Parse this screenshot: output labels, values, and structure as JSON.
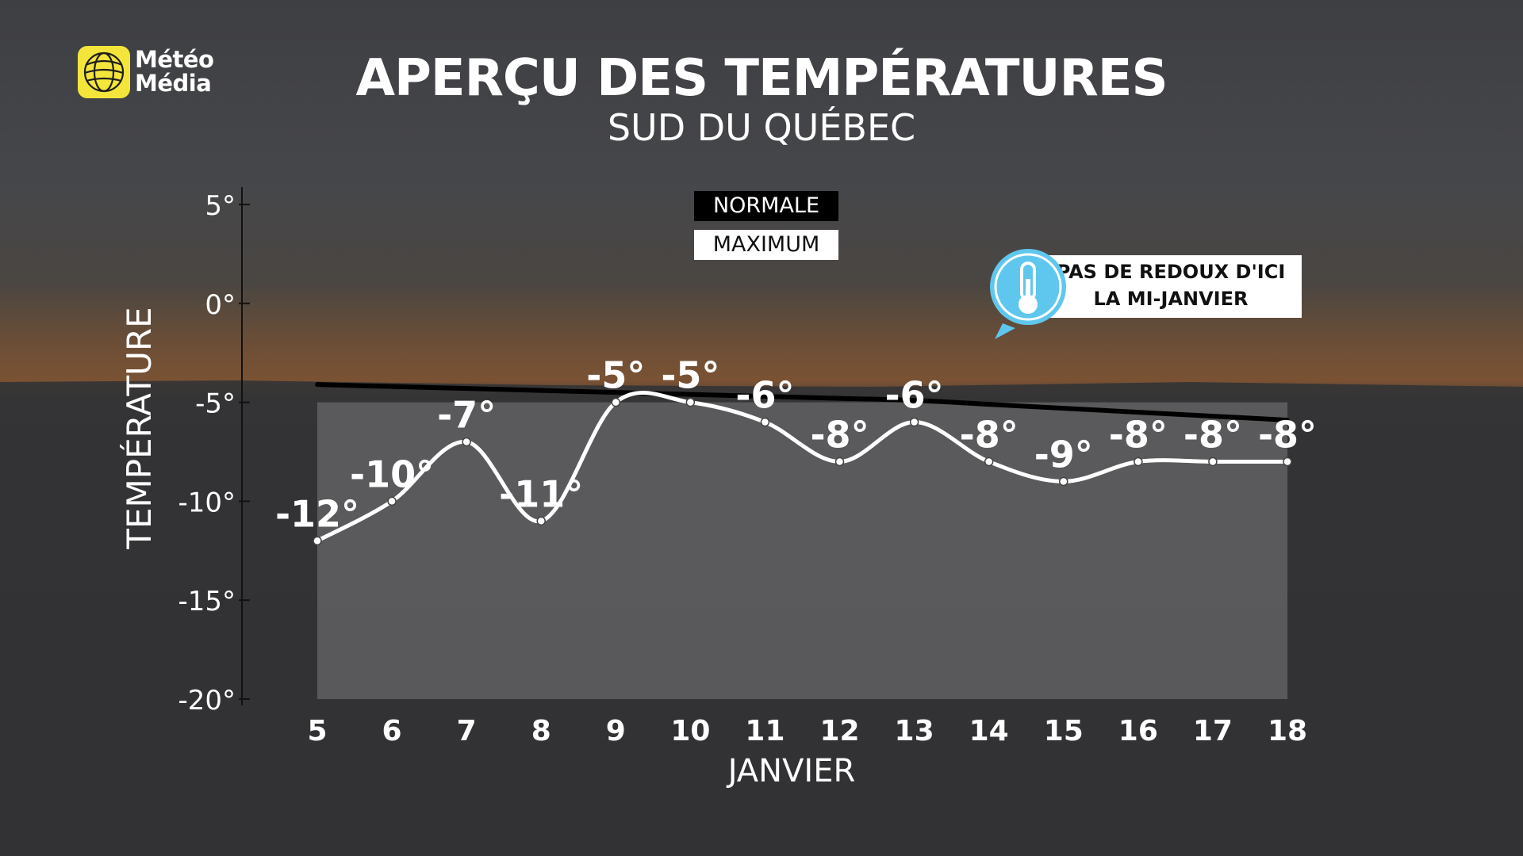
{
  "header": {
    "title": "APERÇU DES TEMPÉRATURES",
    "subtitle": "SUD DU QUÉBEC"
  },
  "logo": {
    "line1": "Météo",
    "line2": "Média",
    "icon": "globe-icon"
  },
  "legend": {
    "normal": "NORMALE",
    "maximum": "MAXIMUM"
  },
  "callout": {
    "line1": "PAS DE REDOUX D'ICI",
    "line2": "LA MI-JANVIER",
    "icon": "thermometer-icon"
  },
  "colors": {
    "maximum": "#ffffff",
    "normale": "#000000",
    "callout_accent": "#5fc7ee",
    "logo_badge": "#f4e53a"
  },
  "chart_data": {
    "type": "line",
    "title": "APERÇU DES TEMPÉRATURES",
    "subtitle": "SUD DU QUÉBEC",
    "xlabel": "JANVIER",
    "ylabel": "TEMPÉRATURE",
    "categories": [
      "5",
      "6",
      "7",
      "8",
      "9",
      "10",
      "11",
      "12",
      "13",
      "14",
      "15",
      "16",
      "17",
      "18"
    ],
    "ylim": [
      -20,
      5
    ],
    "yticks": [
      5,
      0,
      -5,
      -10,
      -15,
      -20
    ],
    "ytick_labels": [
      "5°",
      "0°",
      "-5°",
      "-10°",
      "-15°",
      "-20°"
    ],
    "series": [
      {
        "name": "MAXIMUM",
        "values": [
          -12,
          -10,
          -7,
          -11,
          -5,
          -5,
          -6,
          -8,
          -6,
          -8,
          -9,
          -8,
          -8,
          -8
        ],
        "labels": [
          "-12°",
          "-10°",
          "-7°",
          "-11°",
          "-5°",
          "-5°",
          "-6°",
          "-8°",
          "-6°",
          "-8°",
          "-9°",
          "-8°",
          "-8°",
          "-8°"
        ]
      },
      {
        "name": "NORMALE",
        "values": [
          -4.1,
          -4.2,
          -4.3,
          -4.4,
          -4.5,
          -4.6,
          -4.7,
          -4.8,
          -4.9,
          -5.1,
          -5.3,
          -5.5,
          -5.7,
          -5.9
        ]
      }
    ],
    "legend": [
      "NORMALE",
      "MAXIMUM"
    ],
    "grid": false
  }
}
